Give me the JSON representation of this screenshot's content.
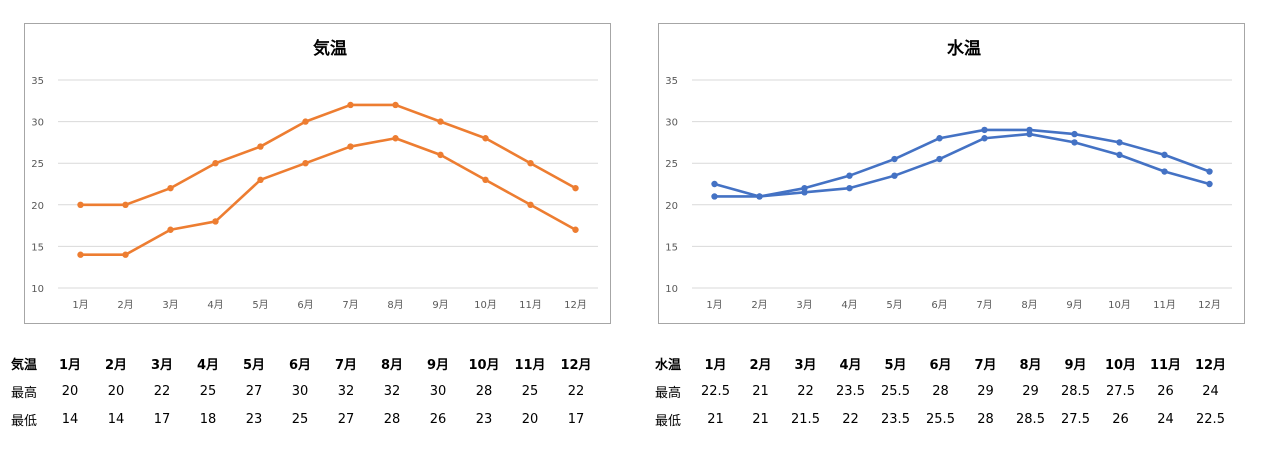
{
  "chart_data": [
    {
      "type": "line",
      "title": "気温",
      "categories": [
        "1月",
        "2月",
        "3月",
        "4月",
        "5月",
        "6月",
        "7月",
        "8月",
        "9月",
        "10月",
        "11月",
        "12月"
      ],
      "series": [
        {
          "name": "最高",
          "values": [
            20,
            20,
            22,
            25,
            27,
            30,
            32,
            32,
            30,
            28,
            25,
            22
          ]
        },
        {
          "name": "最低",
          "values": [
            14,
            14,
            17,
            18,
            23,
            25,
            27,
            28,
            26,
            23,
            20,
            17
          ]
        }
      ],
      "ylim": [
        10,
        35
      ],
      "yticks": [
        10,
        15,
        20,
        25,
        30,
        35
      ],
      "xlabel": "",
      "ylabel": "",
      "grid": true,
      "legend": "none",
      "color": "#ed7d31"
    },
    {
      "type": "line",
      "title": "水温",
      "categories": [
        "1月",
        "2月",
        "3月",
        "4月",
        "5月",
        "6月",
        "7月",
        "8月",
        "9月",
        "10月",
        "11月",
        "12月"
      ],
      "series": [
        {
          "name": "最高",
          "values": [
            22.5,
            21,
            22,
            23.5,
            25.5,
            28,
            29,
            29,
            28.5,
            27.5,
            26,
            24
          ]
        },
        {
          "name": "最低",
          "values": [
            21,
            21,
            21.5,
            22,
            23.5,
            25.5,
            28,
            28.5,
            27.5,
            26,
            24,
            22.5
          ]
        }
      ],
      "ylim": [
        10,
        35
      ],
      "yticks": [
        10,
        15,
        20,
        25,
        30,
        35
      ],
      "xlabel": "",
      "ylabel": "",
      "grid": true,
      "legend": "none",
      "color": "#4472c4"
    }
  ],
  "tables": {
    "air": {
      "header": [
        "気温",
        "1月",
        "2月",
        "3月",
        "4月",
        "5月",
        "6月",
        "7月",
        "8月",
        "9月",
        "10月",
        "11月",
        "12月"
      ],
      "rows": [
        [
          "最高",
          "20",
          "20",
          "22",
          "25",
          "27",
          "30",
          "32",
          "32",
          "30",
          "28",
          "25",
          "22"
        ],
        [
          "最低",
          "14",
          "14",
          "17",
          "18",
          "23",
          "25",
          "27",
          "28",
          "26",
          "23",
          "20",
          "17"
        ]
      ]
    },
    "water": {
      "header": [
        "水温",
        "1月",
        "2月",
        "3月",
        "4月",
        "5月",
        "6月",
        "7月",
        "8月",
        "9月",
        "10月",
        "11月",
        "12月"
      ],
      "rows": [
        [
          "最高",
          "22.5",
          "21",
          "22",
          "23.5",
          "25.5",
          "28",
          "29",
          "29",
          "28.5",
          "27.5",
          "26",
          "24"
        ],
        [
          "最低",
          "21",
          "21",
          "21.5",
          "22",
          "23.5",
          "25.5",
          "28",
          "28.5",
          "27.5",
          "26",
          "24",
          "22.5"
        ]
      ]
    }
  }
}
